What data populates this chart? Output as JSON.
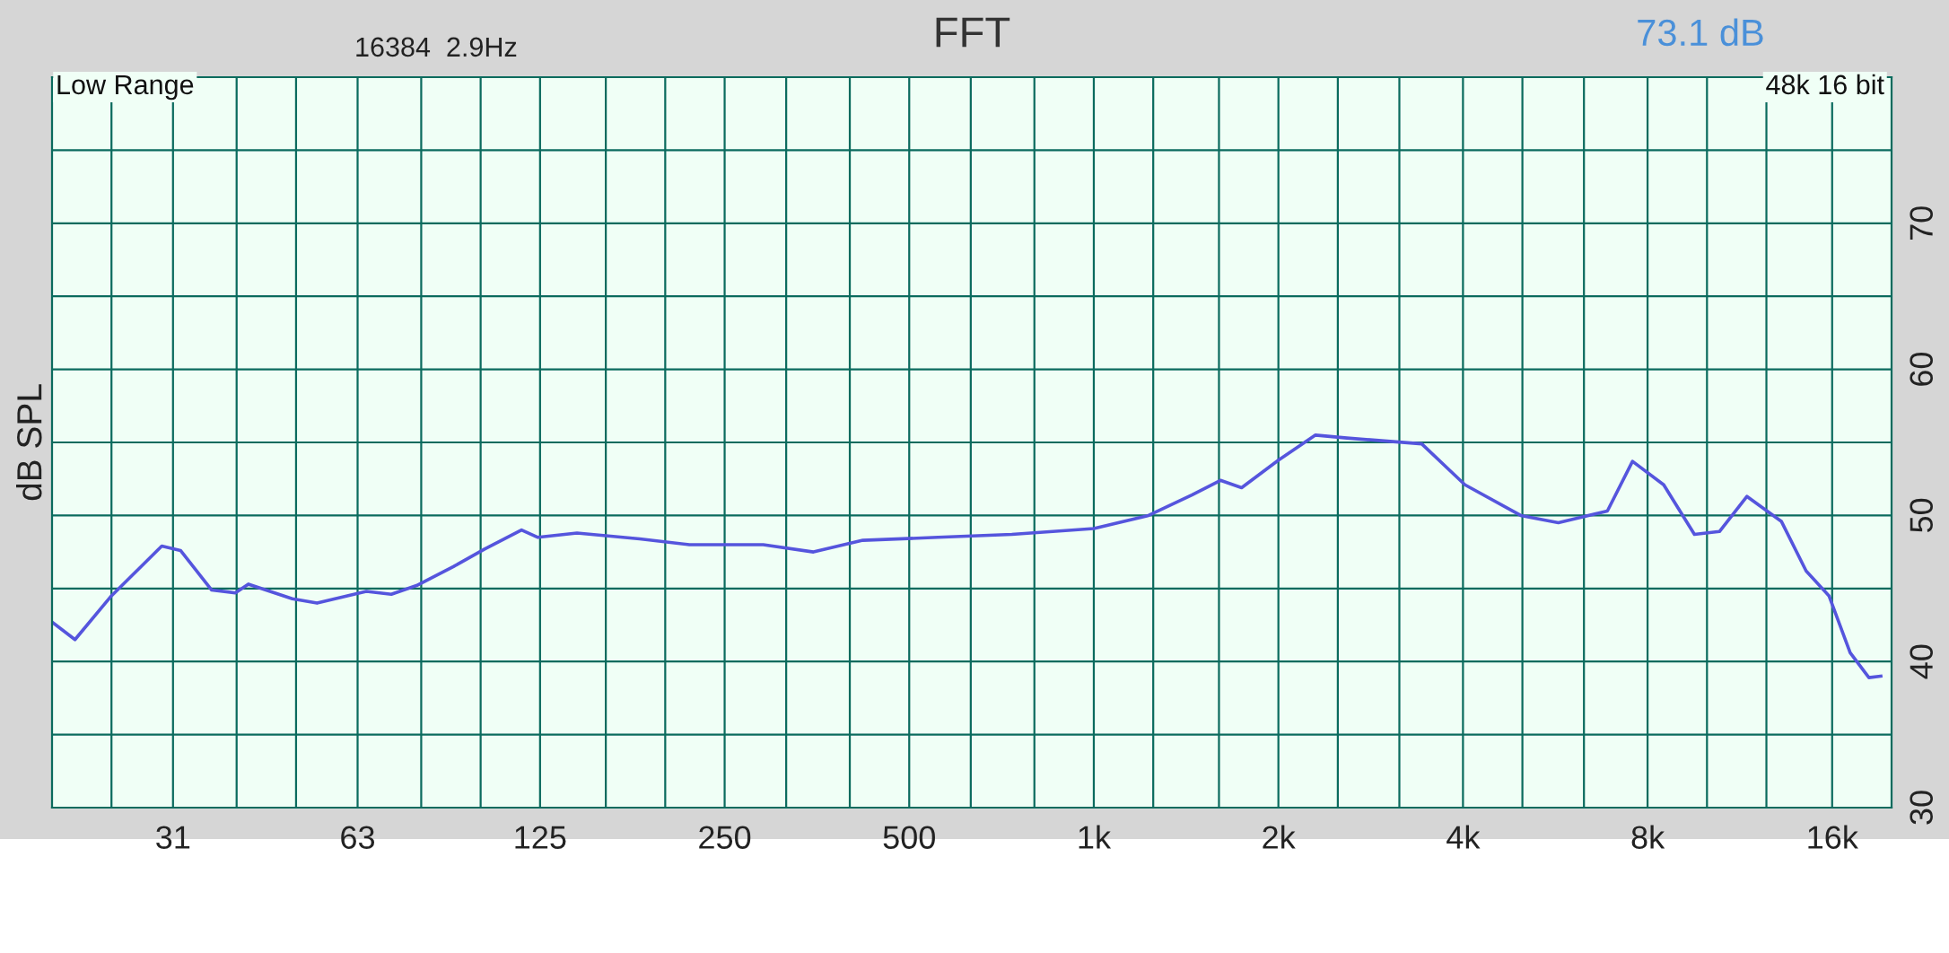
{
  "chart_data": {
    "type": "line",
    "title": "FFT",
    "ylabel": "dB SPL",
    "annotations": [
      "16384  2.9Hz",
      "73.1 dB",
      "Low Range",
      "48k 16 bit"
    ],
    "x": [
      20,
      21.8,
      25.0,
      30.2,
      32.4,
      36.4,
      39.8,
      41.8,
      49.3,
      54.1,
      65.1,
      71.5,
      78.6,
      90.3,
      101.5,
      116.6,
      124,
      143.6,
      181.7,
      219,
      289,
      349,
      420,
      557,
      735,
      1000,
      1228,
      1445,
      1609,
      1742,
      2003,
      2299,
      2587,
      3426,
      4030,
      4969,
      5723,
      6879,
      7560,
      8500,
      9540,
      10480,
      11620,
      13220,
      14510,
      15810,
      17120,
      18370,
      19210
    ],
    "series": [
      {
        "color": "#5555dd",
        "values": [
          42.7,
          41.5,
          44.5,
          47.9,
          47.6,
          44.9,
          44.7,
          45.3,
          44.3,
          44.0,
          44.8,
          44.6,
          45.2,
          46.5,
          47.7,
          49.0,
          48.5,
          48.8,
          48.4,
          48.0,
          48.0,
          47.5,
          48.3,
          48.5,
          48.7,
          49.1,
          50.0,
          51.4,
          52.4,
          51.9,
          53.8,
          55.5,
          55.3,
          54.9,
          52.1,
          50.0,
          49.5,
          50.3,
          53.7,
          52.1,
          48.7,
          48.9,
          51.3,
          49.6,
          46.2,
          44.5,
          40.6,
          38.9,
          39.0
        ]
      }
    ],
    "log": "x",
    "xlim": [
      20,
      20000
    ],
    "ylim": [
      30,
      80
    ],
    "xticks": [
      {
        "value": 25,
        "label": null
      },
      {
        "value": 31.5,
        "label": "31"
      },
      {
        "value": 40,
        "label": null
      },
      {
        "value": 50,
        "label": null
      },
      {
        "value": 63,
        "label": "63"
      },
      {
        "value": 80,
        "label": null
      },
      {
        "value": 100,
        "label": null
      },
      {
        "value": 125,
        "label": "125"
      },
      {
        "value": 160,
        "label": null
      },
      {
        "value": 200,
        "label": null
      },
      {
        "value": 250,
        "label": "250"
      },
      {
        "value": 315,
        "label": null
      },
      {
        "value": 400,
        "label": null
      },
      {
        "value": 500,
        "label": "500"
      },
      {
        "value": 630,
        "label": null
      },
      {
        "value": 800,
        "label": null
      },
      {
        "value": 1000,
        "label": "1k"
      },
      {
        "value": 1250,
        "label": null
      },
      {
        "value": 1600,
        "label": null
      },
      {
        "value": 2000,
        "label": "2k"
      },
      {
        "value": 2500,
        "label": null
      },
      {
        "value": 3150,
        "label": null
      },
      {
        "value": 4000,
        "label": "4k"
      },
      {
        "value": 5000,
        "label": null
      },
      {
        "value": 6300,
        "label": null
      },
      {
        "value": 8000,
        "label": "8k"
      },
      {
        "value": 10000,
        "label": null
      },
      {
        "value": 12500,
        "label": null
      },
      {
        "value": 16000,
        "label": "16k"
      }
    ],
    "yticks": [
      30,
      {
        "value": 35,
        "label": null
      },
      40,
      {
        "value": 45,
        "label": null
      },
      50,
      {
        "value": 55,
        "label": null
      },
      60,
      {
        "value": 65,
        "label": null
      },
      70,
      {
        "value": 75,
        "label": null
      }
    ],
    "grid": true,
    "marker": "none",
    "line_style": "solid"
  }
}
